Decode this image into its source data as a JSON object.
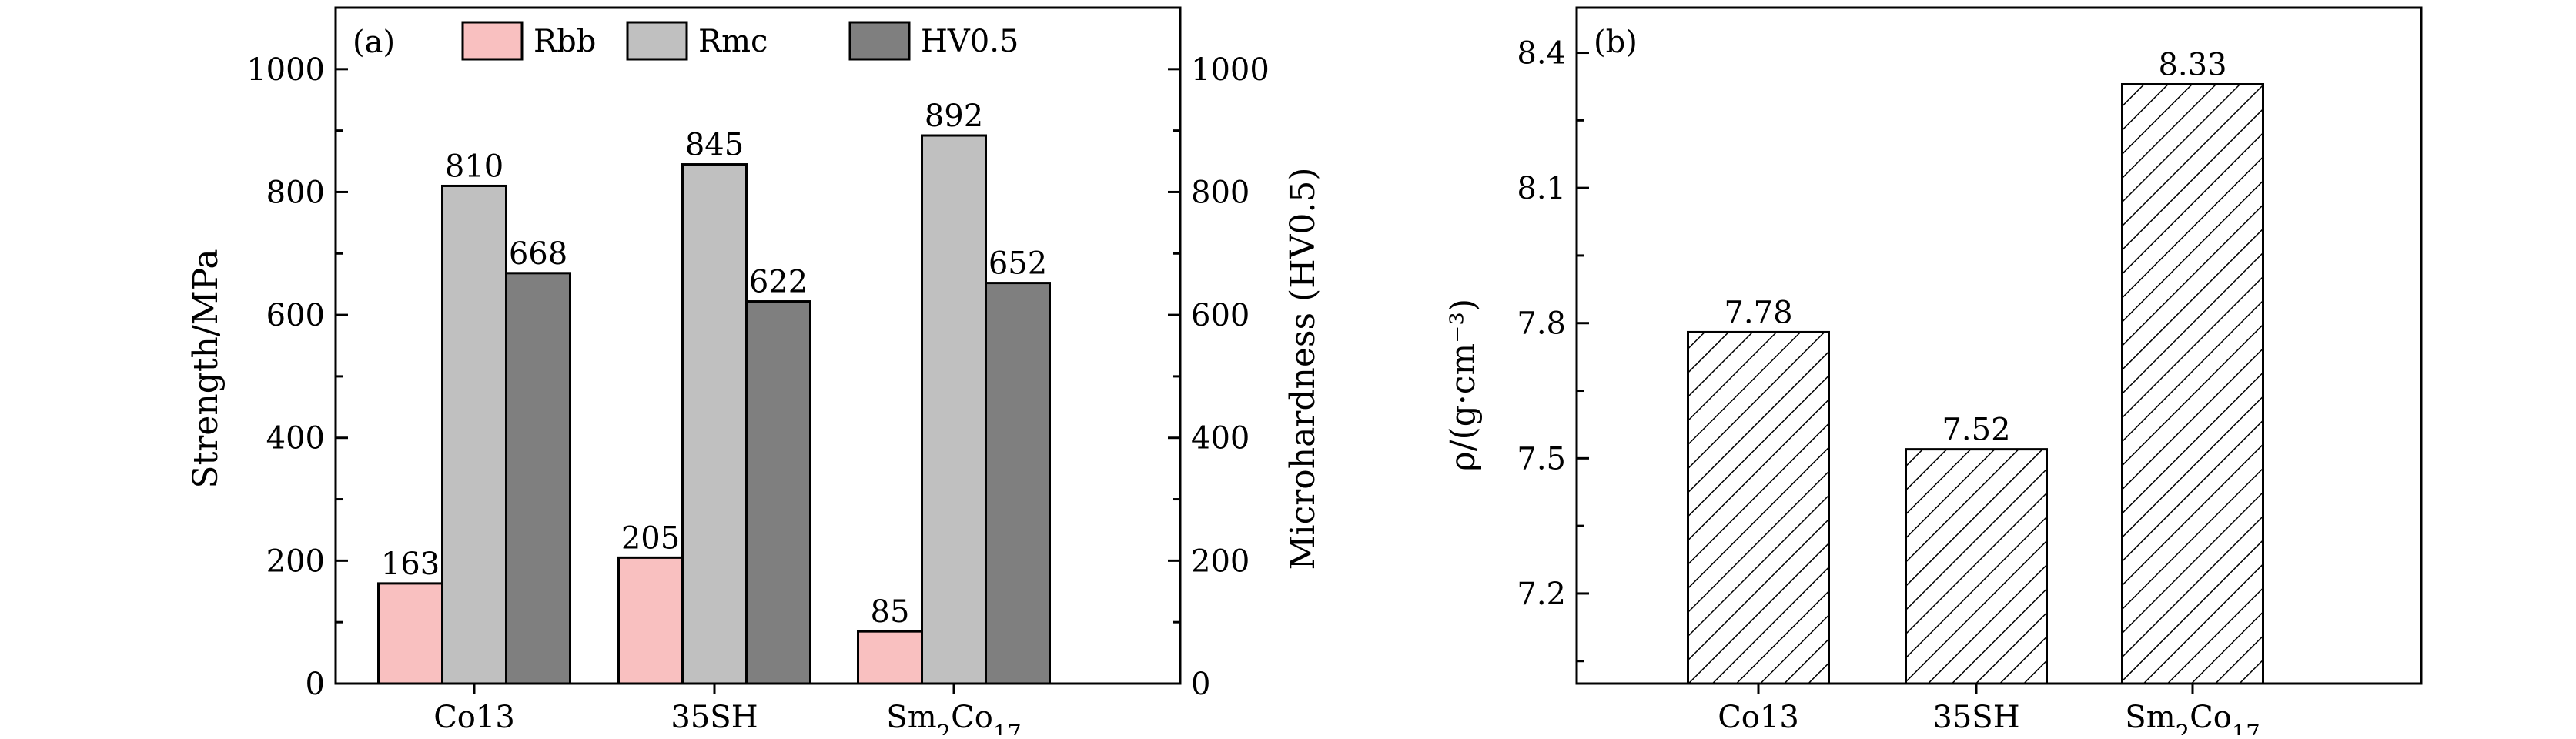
{
  "chart_data": [
    {
      "panel_label": "(a)",
      "type": "bar",
      "categories": [
        "Co13",
        "35SH",
        "Sm₂Co₁₇"
      ],
      "series": [
        {
          "name": "Rbb",
          "values": [
            163,
            205,
            85
          ],
          "color": "#f9c0c0",
          "axis": "left"
        },
        {
          "name": "Rmc",
          "values": [
            810,
            845,
            892
          ],
          "color": "#c0c0c0",
          "axis": "left"
        },
        {
          "name": "HV0.5",
          "values": [
            668,
            622,
            652
          ],
          "color": "#7f7f7f",
          "axis": "right"
        }
      ],
      "ylabel": "Strength/MPa",
      "y2label": "Microhardness (HV0.5)",
      "ylim": [
        0,
        1100
      ],
      "y2lim": [
        0,
        1100
      ],
      "yticks": [
        0,
        200,
        400,
        600,
        800,
        1000
      ],
      "y2ticks": [
        0,
        200,
        400,
        600,
        800,
        1000
      ],
      "legend_position": "top",
      "grid": false
    },
    {
      "panel_label": "(b)",
      "type": "bar",
      "categories": [
        "Co13",
        "35SH",
        "Sm₂Co₁₇"
      ],
      "values": [
        7.78,
        7.52,
        8.33
      ],
      "value_labels": [
        "7.78",
        "7.52",
        "8.33"
      ],
      "fill": "diagonal-hatch",
      "ylabel": "ρ/(g·cm⁻³)",
      "ylim": [
        7.0,
        8.5
      ],
      "yticks": [
        7.2,
        7.5,
        7.8,
        8.1,
        8.4
      ],
      "ytick_labels": [
        "7.2",
        "7.5",
        "7.8",
        "8.1",
        "8.4"
      ],
      "grid": false
    }
  ]
}
